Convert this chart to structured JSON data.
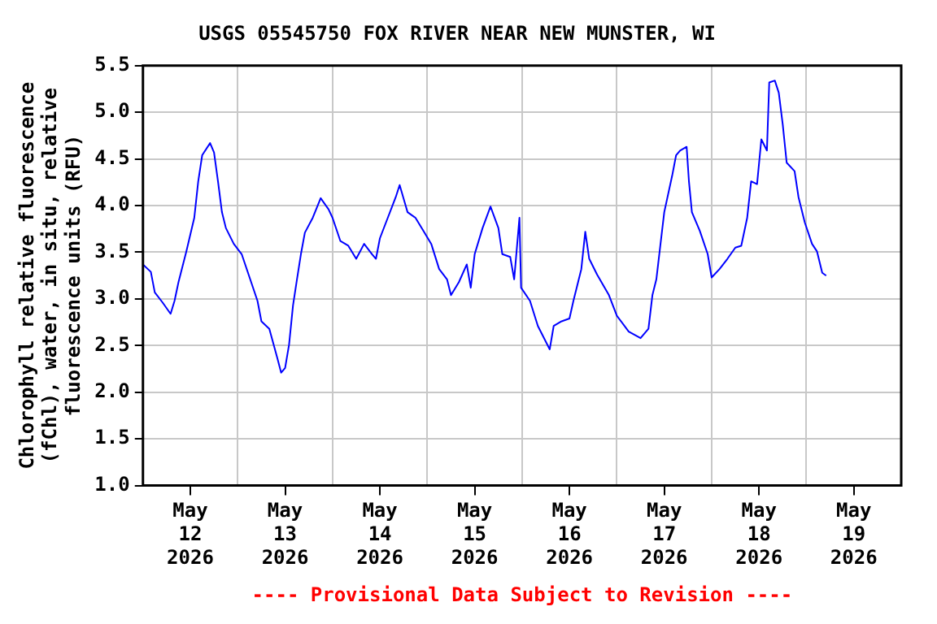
{
  "chart_data": {
    "type": "line",
    "title": "USGS 05545750 FOX RIVER NEAR NEW MUNSTER, WI",
    "ylabel": "Chlorophyll relative fluorescence (fChl), water, in situ, relative fluorescence units (RFU)",
    "annotations": [
      "---- Provisional Data Subject to Revision ----"
    ],
    "x": [
      "2026-05-12T00:00",
      "2026-05-12T02:00",
      "2026-05-12T03:00",
      "2026-05-12T05:00",
      "2026-05-12T07:00",
      "2026-05-12T08:00",
      "2026-05-12T09:00",
      "2026-05-12T11:00",
      "2026-05-12T13:00",
      "2026-05-12T14:00",
      "2026-05-12T15:00",
      "2026-05-12T17:00",
      "2026-05-12T18:00",
      "2026-05-12T19:00",
      "2026-05-12T20:00",
      "2026-05-12T21:00",
      "2026-05-12T23:00",
      "2026-05-13T01:00",
      "2026-05-13T03:00",
      "2026-05-13T05:00",
      "2026-05-13T06:00",
      "2026-05-13T08:00",
      "2026-05-13T10:00",
      "2026-05-13T11:00",
      "2026-05-13T12:00",
      "2026-05-13T13:00",
      "2026-05-13T14:00",
      "2026-05-13T15:00",
      "2026-05-13T16:00",
      "2026-05-13T17:00",
      "2026-05-13T19:00",
      "2026-05-13T21:00",
      "2026-05-13T23:00",
      "2026-05-14T00:00",
      "2026-05-14T02:00",
      "2026-05-14T04:00",
      "2026-05-14T06:00",
      "2026-05-14T08:00",
      "2026-05-14T10:00",
      "2026-05-14T11:00",
      "2026-05-14T12:00",
      "2026-05-14T14:00",
      "2026-05-14T16:00",
      "2026-05-14T17:00",
      "2026-05-14T19:00",
      "2026-05-14T21:00",
      "2026-05-14T23:00",
      "2026-05-15T01:00",
      "2026-05-15T03:00",
      "2026-05-15T05:00",
      "2026-05-15T06:00",
      "2026-05-15T08:00",
      "2026-05-15T10:00",
      "2026-05-15T11:00",
      "2026-05-15T12:00",
      "2026-05-15T14:00",
      "2026-05-15T16:00",
      "2026-05-15T18:00",
      "2026-05-15T19:00",
      "2026-05-15T21:00",
      "2026-05-15T22:00",
      "2026-05-15T23:20",
      "2026-05-15T23:45",
      "2026-05-16T02:00",
      "2026-05-16T04:00",
      "2026-05-16T07:00",
      "2026-05-16T08:00",
      "2026-05-16T10:00",
      "2026-05-16T12:00",
      "2026-05-16T13:00",
      "2026-05-16T15:00",
      "2026-05-16T16:00",
      "2026-05-16T17:00",
      "2026-05-16T19:00",
      "2026-05-16T22:00",
      "2026-05-17T00:00",
      "2026-05-17T03:00",
      "2026-05-17T06:00",
      "2026-05-17T08:00",
      "2026-05-17T09:00",
      "2026-05-17T10:00",
      "2026-05-17T11:00",
      "2026-05-17T12:00",
      "2026-05-17T14:00",
      "2026-05-17T15:00",
      "2026-05-17T16:00",
      "2026-05-17T17:40",
      "2026-05-17T18:15",
      "2026-05-17T19:00",
      "2026-05-17T21:00",
      "2026-05-17T23:00",
      "2026-05-18T00:00",
      "2026-05-18T02:00",
      "2026-05-18T04:00",
      "2026-05-18T06:00",
      "2026-05-18T07:30",
      "2026-05-18T09:00",
      "2026-05-18T10:00",
      "2026-05-18T11:30",
      "2026-05-18T12:35",
      "2026-05-18T14:00",
      "2026-05-18T14:35",
      "2026-05-18T16:00",
      "2026-05-18T17:00",
      "2026-05-18T18:00",
      "2026-05-18T19:00",
      "2026-05-18T21:00",
      "2026-05-18T22:00",
      "2026-05-18T23:35",
      "2026-05-19T01:25",
      "2026-05-19T02:40",
      "2026-05-19T04:00",
      "2026-05-19T05:00"
    ],
    "series": [
      {
        "color": "#0000ff",
        "values": [
          3.37,
          3.29,
          3.07,
          2.96,
          2.84,
          2.98,
          3.18,
          3.51,
          3.87,
          4.26,
          4.54,
          4.67,
          4.57,
          4.26,
          3.93,
          3.76,
          3.59,
          3.48,
          3.23,
          2.98,
          2.76,
          2.68,
          2.37,
          2.21,
          2.26,
          2.51,
          2.93,
          3.21,
          3.48,
          3.71,
          3.87,
          4.08,
          3.96,
          3.87,
          3.62,
          3.57,
          3.43,
          3.59,
          3.48,
          3.43,
          3.65,
          3.87,
          4.09,
          4.22,
          3.93,
          3.87,
          3.73,
          3.59,
          3.32,
          3.21,
          3.04,
          3.18,
          3.37,
          3.12,
          3.48,
          3.76,
          3.99,
          3.76,
          3.48,
          3.45,
          3.21,
          3.87,
          3.12,
          2.98,
          2.71,
          2.46,
          2.71,
          2.76,
          2.79,
          2.98,
          3.32,
          3.72,
          3.43,
          3.26,
          3.04,
          2.82,
          2.65,
          2.58,
          2.68,
          3.04,
          3.21,
          3.57,
          3.93,
          4.32,
          4.54,
          4.59,
          4.63,
          4.26,
          3.93,
          3.73,
          3.48,
          3.23,
          3.32,
          3.43,
          3.55,
          3.57,
          3.87,
          4.26,
          4.23,
          4.71,
          4.59,
          5.32,
          5.34,
          5.21,
          4.87,
          4.46,
          4.37,
          4.09,
          3.82,
          3.59,
          3.51,
          3.28,
          3.25
        ]
      }
    ],
    "xlim": [
      "2026-05-12T00:00",
      "2026-05-20T00:00"
    ],
    "xticks": [
      {
        "value": "2026-05-12T12:00",
        "label": "May 12 2026"
      },
      {
        "value": "2026-05-13T00:00",
        "label": null
      },
      {
        "value": "2026-05-13T12:00",
        "label": "May 13 2026"
      },
      {
        "value": "2026-05-14T00:00",
        "label": null
      },
      {
        "value": "2026-05-14T12:00",
        "label": "May 14 2026"
      },
      {
        "value": "2026-05-15T00:00",
        "label": null
      },
      {
        "value": "2026-05-15T12:00",
        "label": "May 15 2026"
      },
      {
        "value": "2026-05-16T00:00",
        "label": null
      },
      {
        "value": "2026-05-16T12:00",
        "label": "May 16 2026"
      },
      {
        "value": "2026-05-17T00:00",
        "label": null
      },
      {
        "value": "2026-05-17T12:00",
        "label": "May 17 2026"
      },
      {
        "value": "2026-05-18T00:00",
        "label": null
      },
      {
        "value": "2026-05-18T12:00",
        "label": "May 18 2026"
      },
      {
        "value": "2026-05-19T00:00",
        "label": null
      },
      {
        "value": "2026-05-19T12:00",
        "label": "May 19 2026"
      }
    ],
    "ylim": [
      1.0,
      5.5
    ],
    "yticks": [
      {
        "value": 1.0,
        "label": "1.0"
      },
      {
        "value": 1.5,
        "label": "1.5"
      },
      {
        "value": 2.0,
        "label": "2.0"
      },
      {
        "value": 2.5,
        "label": "2.5"
      },
      {
        "value": 3.0,
        "label": "3.0"
      },
      {
        "value": 3.5,
        "label": "3.5"
      },
      {
        "value": 4.0,
        "label": "4.0"
      },
      {
        "value": 4.5,
        "label": "4.5"
      },
      {
        "value": 5.0,
        "label": "5.0"
      },
      {
        "value": 5.5,
        "label": "5.5"
      }
    ],
    "grid": true,
    "legend": false,
    "marker": "none",
    "line_style": "solid"
  }
}
